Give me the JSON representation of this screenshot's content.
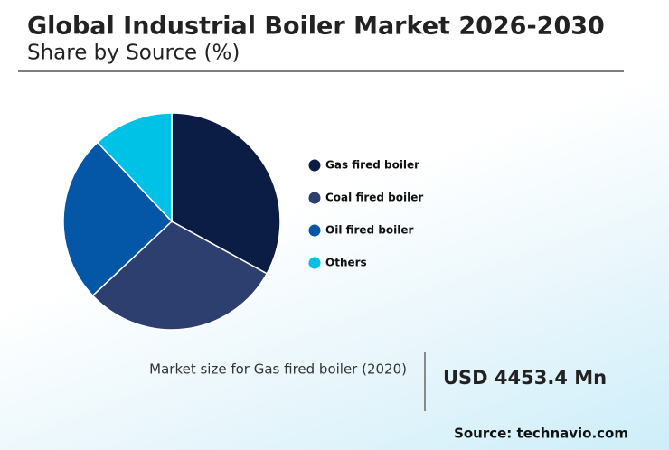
{
  "chart_data": {
    "type": "pie",
    "title": "Global Industrial Boiler Market 2026-2030",
    "subtitle": "Share by Source (%)",
    "categories": [
      "Gas fired boiler",
      "Coal fired boiler",
      "Oil fired boiler",
      "Others"
    ],
    "values": [
      33,
      30,
      25,
      12
    ],
    "colors": [
      "#0b1d45",
      "#2c3f6f",
      "#0456a6",
      "#00c2e6"
    ]
  },
  "highlight": {
    "label": "Market size for Gas fired boiler (2020)",
    "value": "USD 4453.4 Mn"
  },
  "source": "Source: technavio.com"
}
